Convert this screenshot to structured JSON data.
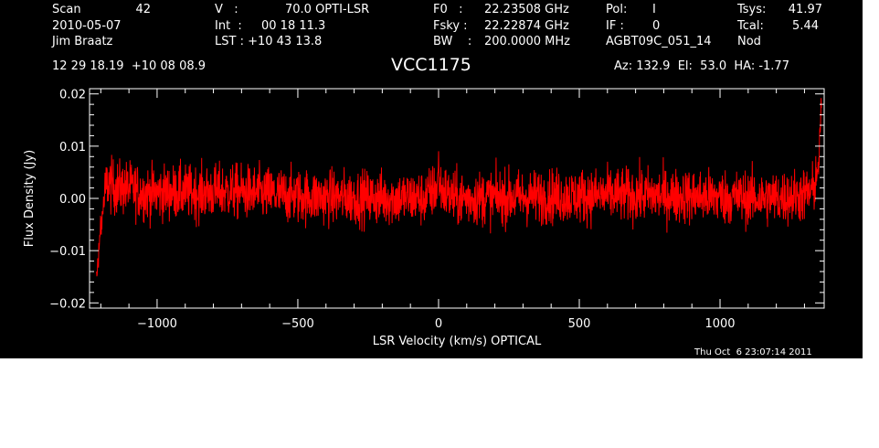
{
  "header": {
    "scan_label": "Scan",
    "scan_value": "42",
    "date": "2010-05-07",
    "observer": "Jim Braatz",
    "v_label": "V   :",
    "v_value": "70.0 OPTI-LSR",
    "int_label": "Int  :",
    "int_value": "00 18 11.3",
    "lst_label": "LST : +10 43 13.8",
    "f0_label": "F0   :",
    "f0_value": "22.23508 GHz",
    "fsky_label": "Fsky :",
    "fsky_value": "22.22874 GHz",
    "bw_label": "BW    :",
    "bw_value": "200.0000 MHz",
    "pol_label": "Pol:",
    "pol_value": "I",
    "if_label": "IF :",
    "if_value": "0",
    "project": "AGBT09C_051_14",
    "tsys_label": "Tsys:",
    "tsys_value": "41.97",
    "tcal_label": "Tcal:",
    "tcal_value": "5.44",
    "mode": "Nod",
    "coords": "12 29 18.19  +10 08 08.9",
    "source": "VCC1175",
    "pointing": "Az: 132.9  El:  53.0  HA: -1.77"
  },
  "footer": {
    "timestamp": "Thu Oct  6 23:07:14 2011"
  },
  "colors": {
    "background": "#000000",
    "axes": "#ffffff",
    "trace": "#ff0000"
  },
  "chart_data": {
    "type": "line",
    "xlabel": "LSR Velocity (km/s) OPTICAL",
    "ylabel": "Flux Density (Jy)",
    "xlim": [
      -1240,
      1370
    ],
    "ylim": [
      -0.021,
      0.021
    ],
    "x_ticks": [
      -1000,
      -500,
      0,
      500,
      1000
    ],
    "x_tick_labels": [
      "−1000",
      "−500",
      "0",
      "500",
      "1000"
    ],
    "y_ticks": [
      -0.02,
      -0.01,
      0.0,
      0.01,
      0.02
    ],
    "y_tick_labels": [
      "−0.02",
      "−0.01",
      "0.00",
      "0.01",
      "0.02"
    ],
    "grid": false,
    "series": [
      {
        "x": [
          -1215,
          -1200,
          -1180,
          -1150,
          -1100,
          -1050,
          -1000,
          -950,
          -900,
          -850,
          -800,
          -750,
          -700,
          -650,
          -600,
          -550,
          -500,
          -450,
          -400,
          -350,
          -300,
          -250,
          -200,
          -150,
          -100,
          -50,
          -5,
          0,
          5,
          50,
          100,
          150,
          200,
          250,
          300,
          350,
          400,
          450,
          500,
          550,
          600,
          650,
          700,
          750,
          800,
          850,
          900,
          950,
          1000,
          1050,
          1100,
          1150,
          1200,
          1250,
          1300,
          1330,
          1350,
          1360
        ],
        "y": [
          -0.015,
          -0.006,
          0.003,
          0.002,
          0.002,
          0.001,
          0.001,
          0.0012,
          0.0012,
          0.001,
          0.0012,
          0.0014,
          0.0012,
          0.001,
          0.0008,
          0.0006,
          0.0004,
          0.0003,
          0.0002,
          0.0002,
          0.0002,
          0.0001,
          0.0001,
          0.0001,
          0.0001,
          0.0,
          0.002,
          0.006,
          0.002,
          0.0,
          0.0,
          0.0001,
          0.0002,
          0.0002,
          0.0002,
          0.0003,
          0.0004,
          0.0004,
          0.0005,
          0.0005,
          0.0006,
          0.0006,
          0.0006,
          0.0006,
          0.0005,
          0.0004,
          0.0004,
          0.0003,
          0.0003,
          0.0002,
          0.0001,
          0.0,
          0.0001,
          0.0003,
          0.0006,
          0.0015,
          0.006,
          0.018
        ],
        "noise_rms": 0.0048
      }
    ]
  }
}
